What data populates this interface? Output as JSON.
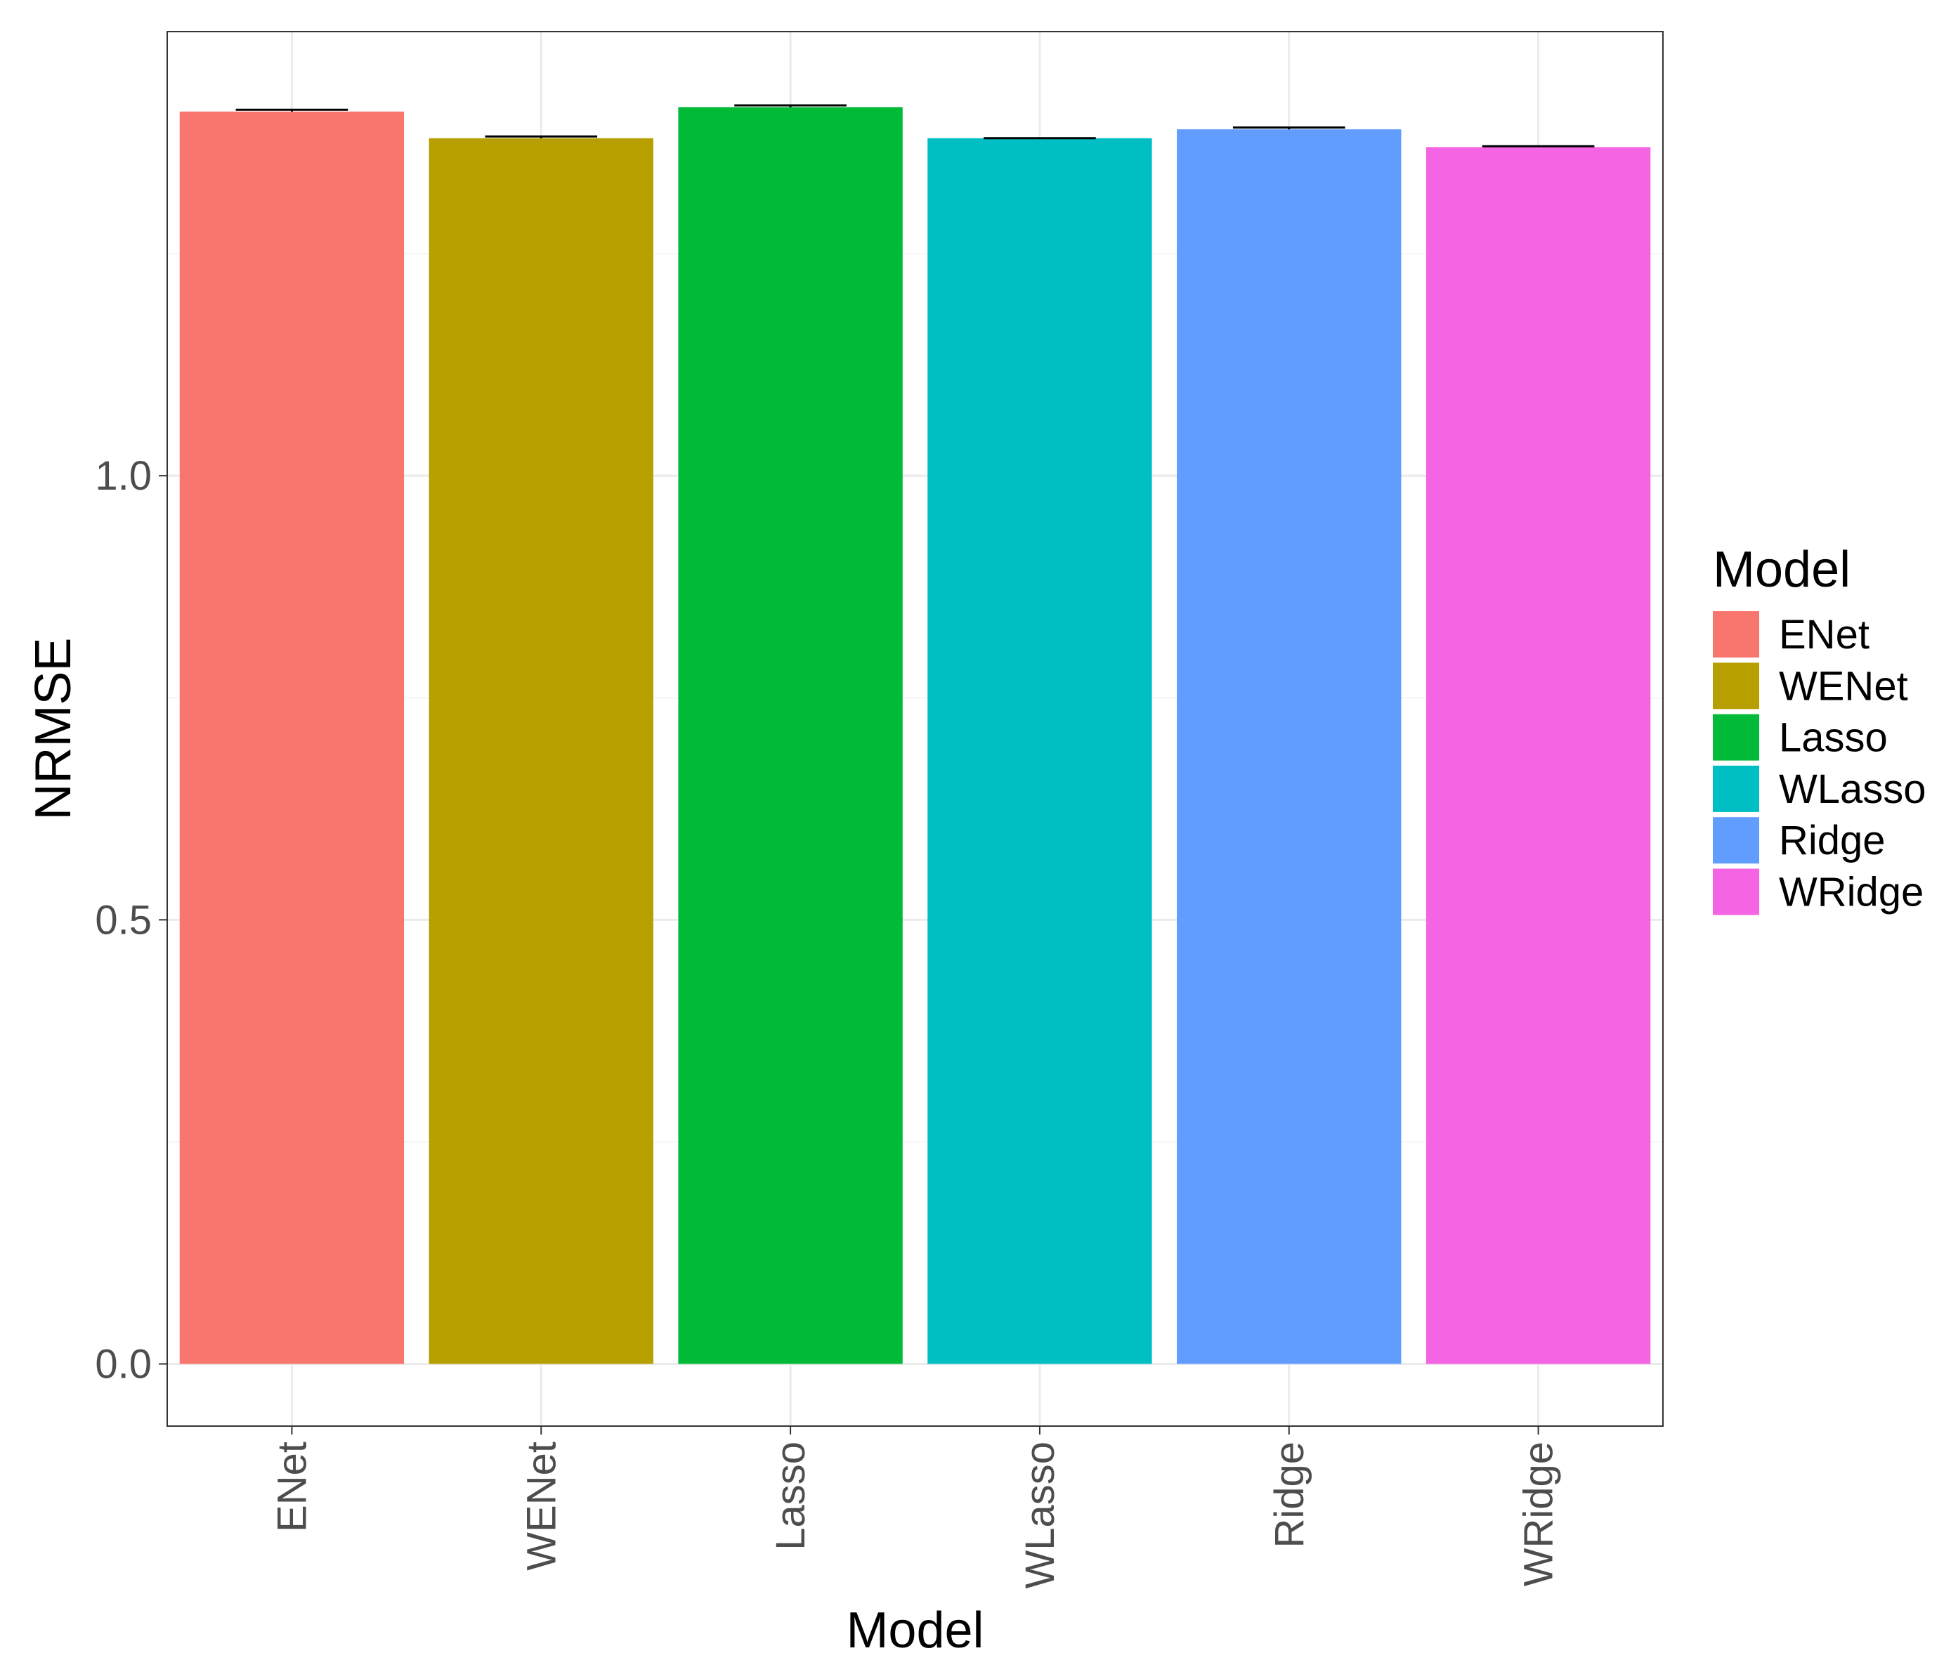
{
  "chart_data": {
    "type": "bar",
    "title": "",
    "xlabel": "Model",
    "ylabel": "NRMSE",
    "categories": [
      "ENet",
      "WENet",
      "Lasso",
      "WLasso",
      "Ridge",
      "WRidge"
    ],
    "values": [
      1.41,
      1.38,
      1.415,
      1.38,
      1.39,
      1.37
    ],
    "error_upper": [
      1.412,
      1.382,
      1.417,
      1.38,
      1.392,
      1.371
    ],
    "colors": [
      "#F8766D",
      "#B79F00",
      "#00BA38",
      "#00BFC4",
      "#619CFF",
      "#F564E3"
    ],
    "ylim": [
      -0.07,
      1.5
    ],
    "y_ticks": [
      0.0,
      0.5,
      1.0
    ],
    "y_tick_labels": [
      "0.0",
      "0.5",
      "1.0"
    ],
    "grid": true,
    "legend": {
      "title": "Model",
      "placement": "right",
      "entries": [
        "ENet",
        "WENet",
        "Lasso",
        "WLasso",
        "Ridge",
        "WRidge"
      ]
    },
    "theme": {
      "panel_border": "#333333",
      "grid_major": "#ebebeb",
      "grid_minor": "#f5f5f5",
      "axis_text": "#4d4d4d",
      "title_text": "#000000",
      "error_bar": "#000000"
    }
  }
}
